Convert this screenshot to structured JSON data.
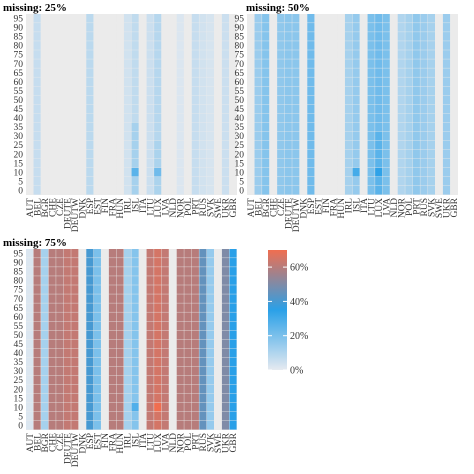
{
  "chart_data": [
    {
      "type": "heatmap",
      "title": "missing: 25%",
      "x_categories": [
        "AUT",
        "BEL",
        "BGR",
        "CHE",
        "CZE",
        "DEUTE",
        "DEUTW",
        "DNK",
        "ESP",
        "EST",
        "FIN",
        "FRA",
        "HUN",
        "IRL",
        "ISL",
        "ITA",
        "LTU",
        "LUX",
        "LVA",
        "NLD",
        "NOR",
        "POL",
        "PRT",
        "RUS",
        "SVK",
        "SWE",
        "UKR",
        "GBR"
      ],
      "y_ticks": [
        0,
        5,
        10,
        15,
        20,
        25,
        30,
        35,
        40,
        45,
        50,
        55,
        60,
        65,
        70,
        75,
        80,
        85,
        90,
        95
      ],
      "column_base_values": [
        0,
        6,
        0,
        0,
        0,
        0,
        0,
        0,
        8,
        0,
        0,
        0,
        0,
        4,
        7,
        0,
        5,
        9,
        0,
        0,
        2,
        0,
        6,
        4,
        3,
        0,
        5,
        0
      ],
      "hotspots": [
        {
          "country": "ISL",
          "y_range": [
            8,
            12
          ],
          "value": 26
        },
        {
          "country": "ISL",
          "y_range": [
            0,
            35
          ],
          "value": 12
        },
        {
          "country": "LUX",
          "y_range": [
            8,
            12
          ],
          "value": 22
        },
        {
          "country": "LUX",
          "y_range": [
            0,
            25
          ],
          "value": 11
        }
      ]
    },
    {
      "type": "heatmap",
      "title": "missing: 50%",
      "x_categories": [
        "AUT",
        "BEL",
        "BGR",
        "CHE",
        "CZE",
        "DEUTE",
        "DEUTW",
        "DNK",
        "ESP",
        "EST",
        "FIN",
        "FRA",
        "HUN",
        "IRL",
        "ISL",
        "ITA",
        "LTU",
        "LUX",
        "LVA",
        "NLD",
        "NOR",
        "POL",
        "PRT",
        "RUS",
        "SVK",
        "SWE",
        "UKR",
        "GBR"
      ],
      "y_ticks": [
        0,
        5,
        10,
        15,
        20,
        25,
        30,
        35,
        40,
        45,
        50,
        55,
        60,
        65,
        70,
        75,
        80,
        85,
        90,
        95
      ],
      "column_base_values": [
        0,
        14,
        18,
        0,
        16,
        17,
        17,
        0,
        22,
        0,
        0,
        0,
        0,
        12,
        15,
        0,
        20,
        22,
        20,
        0,
        10,
        12,
        16,
        14,
        12,
        0,
        14,
        0
      ],
      "hotspots": [
        {
          "country": "ISL",
          "y_range": [
            8,
            12
          ],
          "value": 30
        },
        {
          "country": "LUX",
          "y_range": [
            8,
            12
          ],
          "value": 34
        },
        {
          "country": "LUX",
          "y_range": [
            0,
            30
          ],
          "value": 26
        }
      ]
    },
    {
      "type": "heatmap",
      "title": "missing: 75%",
      "x_categories": [
        "AUT",
        "BEL",
        "BGR",
        "CHE",
        "CZE",
        "DEUTE",
        "DEUTW",
        "DNK",
        "ESP",
        "EST",
        "FIN",
        "FRA",
        "HUN",
        "IRL",
        "ISL",
        "ITA",
        "LTU",
        "LUX",
        "LVA",
        "NLD",
        "NOR",
        "POL",
        "PRT",
        "RUS",
        "SVK",
        "SWE",
        "UKR",
        "GBR"
      ],
      "y_ticks": [
        0,
        5,
        10,
        15,
        20,
        25,
        30,
        35,
        40,
        45,
        50,
        55,
        60,
        65,
        70,
        75,
        80,
        85,
        90,
        95
      ],
      "column_base_values": [
        2,
        60,
        12,
        60,
        60,
        62,
        62,
        0,
        40,
        20,
        0,
        60,
        60,
        12,
        18,
        0,
        62,
        65,
        62,
        0,
        60,
        60,
        60,
        45,
        15,
        0,
        50,
        35
      ],
      "hotspots": [
        {
          "country": "LUX",
          "y_range": [
            8,
            12
          ],
          "value": 72
        },
        {
          "country": "ISL",
          "y_range": [
            8,
            12
          ],
          "value": 28
        }
      ]
    }
  ],
  "legend": {
    "ticks": [
      "0%",
      "20%",
      "40%",
      "60%"
    ],
    "range": [
      0,
      70
    ],
    "colors": [
      "#e6eaf0",
      "#2aa0e8",
      "#f06e50"
    ]
  },
  "colors": {
    "panel_bg": "#ebebeb",
    "base": "#e6eaf0",
    "mid": "#2aa0e8",
    "high": "#f06e50"
  }
}
